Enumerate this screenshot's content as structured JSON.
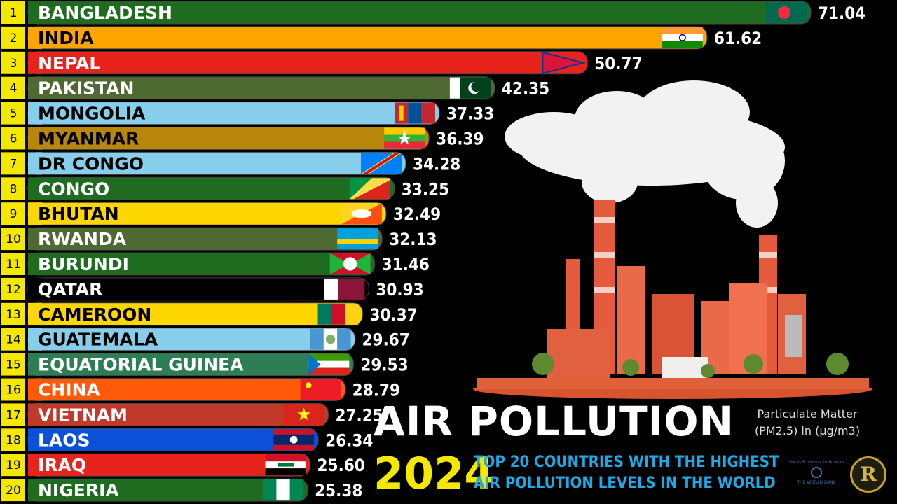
{
  "chart_data": {
    "type": "bar",
    "orientation": "horizontal",
    "ranks": [
      "1",
      "2",
      "3",
      "4",
      "5",
      "6",
      "7",
      "8",
      "9",
      "10",
      "11",
      "12",
      "13",
      "14",
      "15",
      "16",
      "17",
      "18",
      "19",
      "20"
    ],
    "categories": [
      "BANGLADESH",
      "INDIA",
      "NEPAL",
      "PAKISTAN",
      "MONGOLIA",
      "MYANMAR",
      "DR CONGO",
      "CONGO",
      "BHUTAN",
      "RWANDA",
      "BURUNDI",
      "QATAR",
      "CAMEROON",
      "GUATEMALA",
      "EQUATORIAL GUINEA",
      "CHINA",
      "VIETNAM",
      "LAOS",
      "IRAQ",
      "NIGERIA"
    ],
    "values": [
      71.04,
      61.62,
      50.77,
      42.35,
      37.33,
      36.39,
      34.28,
      33.25,
      32.49,
      32.13,
      31.46,
      30.93,
      30.37,
      29.67,
      29.53,
      28.79,
      27.25,
      26.34,
      25.6,
      25.38
    ],
    "value_labels": [
      "71.04",
      "61.62",
      "50.77",
      "42.35",
      "37.33",
      "36.39",
      "34.28",
      "33.25",
      "32.49",
      "32.13",
      "31.46",
      "30.93",
      "30.37",
      "29.67",
      "29.53",
      "28.79",
      "27.25",
      "26.34",
      "25.60",
      "25.38"
    ],
    "bar_colors": [
      "#1f6b1f",
      "#ffa500",
      "#e8231c",
      "#4e6a32",
      "#87ceeb",
      "#b8860b",
      "#87ceeb",
      "#1f6b1f",
      "#ffd700",
      "#4e6a32",
      "#1f6b1f",
      "#000000",
      "#ffd700",
      "#87ceeb",
      "#2e7d55",
      "#ff5a0a",
      "#c0392b",
      "#0b50d8",
      "#e8231c",
      "#1f6b1f"
    ],
    "label_colors": [
      "#ffffff",
      "#000000",
      "#ffffff",
      "#ffffff",
      "#000000",
      "#000000",
      "#000000",
      "#ffffff",
      "#000000",
      "#ffffff",
      "#ffffff",
      "#ffffff",
      "#000000",
      "#000000",
      "#ffffff",
      "#ffffff",
      "#ffffff",
      "#ffffff",
      "#ffffff",
      "#ffffff"
    ],
    "flag_icons": [
      "bangladesh-flag",
      "india-flag",
      "nepal-flag",
      "pakistan-flag",
      "mongolia-flag",
      "myanmar-flag",
      "dr-congo-flag",
      "congo-flag",
      "bhutan-flag",
      "rwanda-flag",
      "burundi-flag",
      "qatar-flag",
      "cameroon-flag",
      "guatemala-flag",
      "equatorial-guinea-flag",
      "china-flag",
      "vietnam-flag",
      "laos-flag",
      "iraq-flag",
      "nigeria-flag"
    ],
    "xlim": [
      0,
      71.04
    ]
  },
  "title": "AIR POLLUTION",
  "year": "2024",
  "subtitle_line1": "TOP 20 COUNTRIES WITH THE HIGHEST",
  "subtitle_line2": "AIR POLLUTION LEVELS IN THE WORLD",
  "unit_line1": "Particulate Matter",
  "unit_line2": "(PM2.5) in (μg/m3)",
  "logo_text_1": "Socio-Economic Indicators",
  "logo_text_2": "THE WORLD BANK",
  "logo_monogram": "R",
  "illustration": "factory-smoke-illustration",
  "colors": {
    "rank_box": "#f5e800",
    "title": "#ffffff",
    "year": "#f5e800",
    "subtitle": "#1da9e6"
  }
}
